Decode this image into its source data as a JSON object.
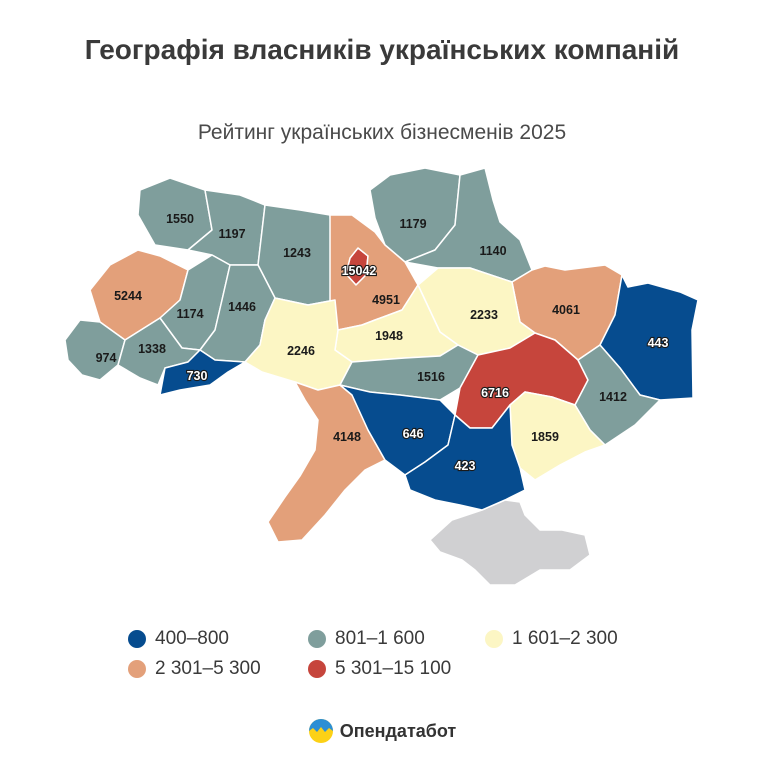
{
  "title": "Географія власників українських компаній",
  "subtitle": "Рейтинг українських бізнесменів 2025",
  "brand": {
    "name": "Опендатабот",
    "logo_icon": "opendatabot-logo-icon"
  },
  "colors": {
    "c1": "#064c8f",
    "c2": "#7f9e9c",
    "c3": "#fcf6c4",
    "c4": "#e3a07a",
    "c5": "#c6453c",
    "crimea": "#d0d0d2",
    "border": "#ffffff"
  },
  "legend": [
    {
      "label": "400–800",
      "color": "#064c8f"
    },
    {
      "label": "801–1 600",
      "color": "#7f9e9c"
    },
    {
      "label": "1 601–2 300",
      "color": "#fcf6c4"
    },
    {
      "label": "2 301–5 300",
      "color": "#e3a07a"
    },
    {
      "label": "5 301–15 100",
      "color": "#c6453c"
    }
  ],
  "regions": [
    {
      "value": "1550",
      "class": "c2"
    },
    {
      "value": "1197",
      "class": "c2"
    },
    {
      "value": "1243",
      "class": "c2"
    },
    {
      "value": "1179",
      "class": "c2"
    },
    {
      "value": "15042",
      "class": "c5"
    },
    {
      "value": "1140",
      "class": "c2"
    },
    {
      "value": "5244",
      "class": "c4"
    },
    {
      "value": "4951",
      "class": "c4"
    },
    {
      "value": "4061",
      "class": "c4"
    },
    {
      "value": "1174",
      "class": "c2"
    },
    {
      "value": "1446",
      "class": "c2"
    },
    {
      "value": "2233",
      "class": "c3"
    },
    {
      "value": "443",
      "class": "c1"
    },
    {
      "value": "1948",
      "class": "c3"
    },
    {
      "value": "974",
      "class": "c2"
    },
    {
      "value": "1338",
      "class": "c2"
    },
    {
      "value": "2246",
      "class": "c3"
    },
    {
      "value": "730",
      "class": "c1"
    },
    {
      "value": "1516",
      "class": "c2"
    },
    {
      "value": "6716",
      "class": "c5"
    },
    {
      "value": "1412",
      "class": "c2"
    },
    {
      "value": "4148",
      "class": "c4"
    },
    {
      "value": "646",
      "class": "c1"
    },
    {
      "value": "1859",
      "class": "c3"
    },
    {
      "value": "423",
      "class": "c1"
    }
  ]
}
